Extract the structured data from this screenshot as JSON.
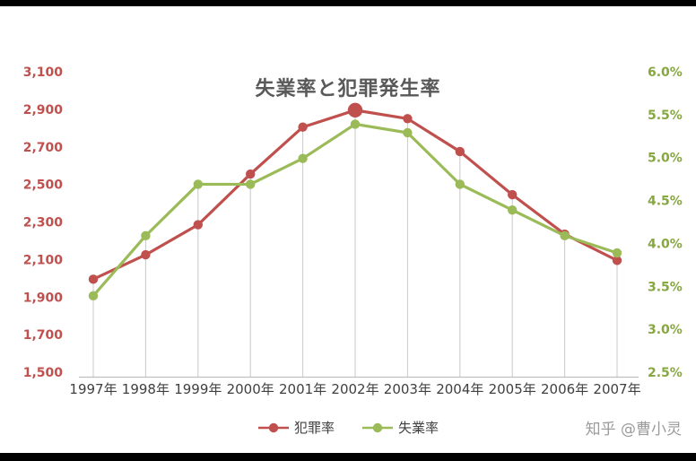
{
  "chart_data": {
    "type": "line",
    "title": "失業率と犯罪発生率",
    "title_color": "#595959",
    "categories": [
      "1997年",
      "1998年",
      "1999年",
      "2000年",
      "2001年",
      "2002年",
      "2003年",
      "2004年",
      "2005年",
      "2006年",
      "2007年"
    ],
    "series": [
      {
        "name": "犯罪率",
        "axis": "left",
        "color": "#C0504D",
        "marker": "circle",
        "values": [
          2000,
          2130,
          2290,
          2560,
          2810,
          2900,
          2855,
          2680,
          2450,
          2240,
          2100
        ],
        "emphasis_index": 5
      },
      {
        "name": "失業率",
        "axis": "right",
        "color": "#9BBB59",
        "marker": "circle",
        "values": [
          3.4,
          4.1,
          4.7,
          4.7,
          5.0,
          5.4,
          5.3,
          4.7,
          4.4,
          4.1,
          3.9
        ]
      }
    ],
    "left_axis": {
      "min": 1500,
      "max": 3100,
      "tick_step": 200,
      "color": "#C0504D",
      "ticks": [
        "3,100",
        "2,900",
        "2,700",
        "2,500",
        "2,300",
        "2,100",
        "1,900",
        "1,700",
        "1,500"
      ]
    },
    "right_axis": {
      "min": 2.5,
      "max": 6.0,
      "tick_step": 0.5,
      "color": "#87A840",
      "ticks": [
        "6.0%",
        "5.5%",
        "5.0%",
        "4.5%",
        "4.0%",
        "3.5%",
        "3.0%",
        "2.5%"
      ]
    },
    "x_axis": {
      "label_color": "#404040"
    },
    "grid": "vertical-drop-lines",
    "grid_color": "#C8C8C8",
    "axis_line_color": "#BFBFBF",
    "legend_position": "bottom"
  },
  "watermark": {
    "text": "知乎 @曹小灵",
    "color": "#9B9B9B"
  }
}
